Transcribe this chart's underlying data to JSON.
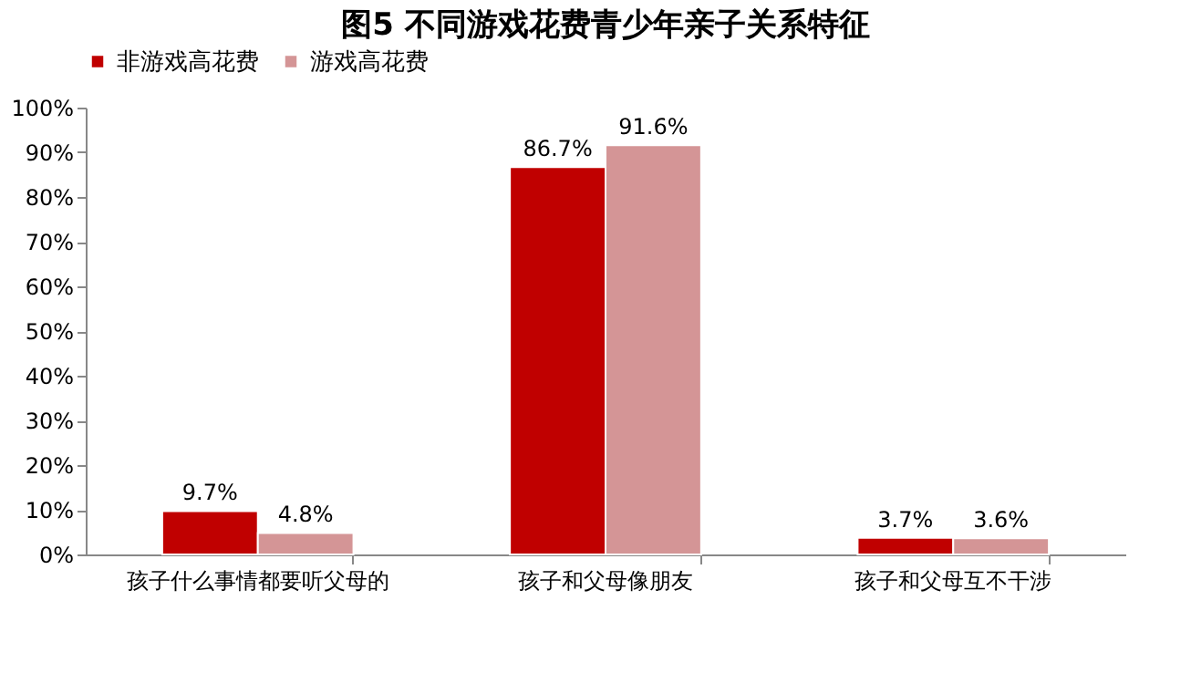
{
  "chart_data": {
    "type": "bar",
    "title": "图5   不同游戏花费青少年亲子关系特征",
    "categories": [
      "孩子什么事情都要听父母的",
      "孩子和父母像朋友",
      "孩子和父母互不干涉"
    ],
    "series": [
      {
        "name": "非游戏高花费",
        "color": "#c00000",
        "values": [
          9.7,
          86.7,
          3.7
        ],
        "value_labels": [
          "9.7%",
          "86.7%",
          "3.7%"
        ]
      },
      {
        "name": "游戏高花费",
        "color": "#d49596",
        "values": [
          4.8,
          91.6,
          3.6
        ],
        "value_labels": [
          "4.8%",
          "91.6%",
          "3.6%"
        ]
      }
    ],
    "ylim": [
      0,
      100
    ],
    "yticks": [
      {
        "value": 0,
        "label": "0%"
      },
      {
        "value": 10,
        "label": "10%"
      },
      {
        "value": 20,
        "label": "20%"
      },
      {
        "value": 30,
        "label": "30%"
      },
      {
        "value": 40,
        "label": "40%"
      },
      {
        "value": 50,
        "label": "50%"
      },
      {
        "value": 60,
        "label": "60%"
      },
      {
        "value": 70,
        "label": "70%"
      },
      {
        "value": 80,
        "label": "80%"
      },
      {
        "value": 90,
        "label": "90%"
      },
      {
        "value": 100,
        "label": "100%"
      }
    ],
    "grid": false,
    "legend": "top"
  }
}
